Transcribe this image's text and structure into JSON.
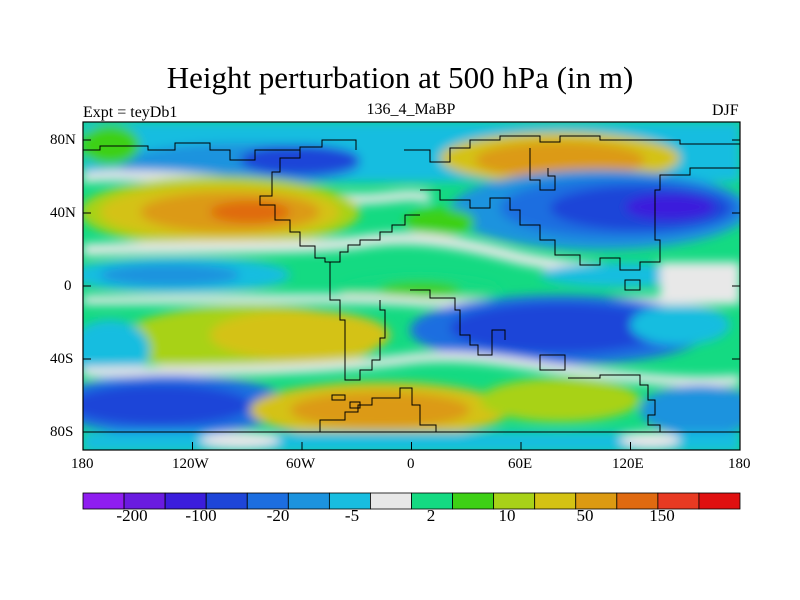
{
  "title": "Height perturbation at 500 hPa (in m)",
  "left_label": "Expt = teyDb1",
  "center_label": "136_4_MaBP",
  "right_label": "DJF",
  "y_ticks": [
    "80N",
    "40N",
    "0",
    "40S",
    "80S"
  ],
  "x_ticks": [
    "180",
    "120W",
    "60W",
    "0",
    "60E",
    "120E",
    "180"
  ],
  "colorbar": {
    "colors": [
      "#8f1df0",
      "#6a1be0",
      "#3b1ddc",
      "#1e45d8",
      "#1c6ee0",
      "#1c93de",
      "#18bde0",
      "#e8e8e8",
      "#14da82",
      "#3ed016",
      "#a8d218",
      "#d4c213",
      "#dc9a12",
      "#e06a10",
      "#e83a22",
      "#e01010"
    ],
    "labels": [
      "-200",
      "-100",
      "-20",
      "-5",
      "2",
      "10",
      "50",
      "150"
    ]
  }
}
